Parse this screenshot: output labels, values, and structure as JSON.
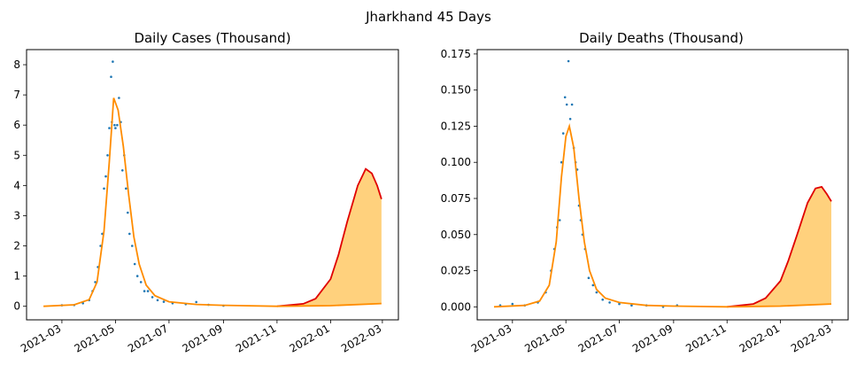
{
  "figure": {
    "suptitle": "Jharkhand 45 Days"
  },
  "colors": {
    "points": "#1f77b4",
    "fit": "#ff8c00",
    "forecast": "#e00000",
    "band": "#ffc966"
  },
  "chart_data": [
    {
      "type": "scatter",
      "title": "Daily Cases (Thousand)",
      "xlabel": "",
      "ylabel": "",
      "x_date_range": [
        "2021-02-08",
        "2022-02-28"
      ],
      "ylim": [
        -0.45,
        8.5
      ],
      "yticks": [
        0,
        1,
        2,
        3,
        4,
        5,
        6,
        7,
        8
      ],
      "xticks": [
        "2021-03",
        "2021-05",
        "2021-07",
        "2021-09",
        "2021-11",
        "2022-01",
        "2022-03"
      ],
      "grid": false,
      "legend": "none",
      "series": [
        {
          "kind": "points",
          "x": [
            "2021-03-01",
            "2021-03-15",
            "2021-03-25",
            "2021-04-01",
            "2021-04-05",
            "2021-04-08",
            "2021-04-11",
            "2021-04-14",
            "2021-04-16",
            "2021-04-18",
            "2021-04-20",
            "2021-04-22",
            "2021-04-24",
            "2021-04-26",
            "2021-04-27",
            "2021-04-28",
            "2021-04-30",
            "2021-05-01",
            "2021-05-03",
            "2021-05-05",
            "2021-05-07",
            "2021-05-09",
            "2021-05-11",
            "2021-05-13",
            "2021-05-15",
            "2021-05-17",
            "2021-05-20",
            "2021-05-23",
            "2021-05-26",
            "2021-05-30",
            "2021-06-03",
            "2021-06-07",
            "2021-06-12",
            "2021-06-18",
            "2021-06-25",
            "2021-07-05",
            "2021-07-20",
            "2021-08-01",
            "2021-08-15",
            "2021-09-01"
          ],
          "y": [
            0.03,
            0.04,
            0.1,
            0.2,
            0.5,
            0.8,
            1.3,
            2.0,
            2.4,
            3.9,
            4.3,
            5.0,
            5.9,
            7.6,
            6.1,
            8.1,
            6.0,
            5.9,
            6.0,
            6.9,
            6.1,
            4.5,
            5.0,
            3.9,
            3.1,
            2.4,
            2.0,
            1.4,
            1.0,
            0.8,
            0.5,
            0.5,
            0.3,
            0.2,
            0.15,
            0.1,
            0.07,
            0.14,
            0.05,
            0.02
          ]
        },
        {
          "kind": "fit",
          "x": [
            "2021-02-08",
            "2021-03-15",
            "2021-04-01",
            "2021-04-10",
            "2021-04-18",
            "2021-04-24",
            "2021-04-29",
            "2021-05-04",
            "2021-05-10",
            "2021-05-16",
            "2021-05-22",
            "2021-05-28",
            "2021-06-05",
            "2021-06-15",
            "2021-07-01",
            "2021-08-01",
            "2021-09-01",
            "2021-11-01",
            "2022-01-01",
            "2022-02-28"
          ],
          "y": [
            0.0,
            0.05,
            0.22,
            0.8,
            2.5,
            4.8,
            6.9,
            6.5,
            5.3,
            3.7,
            2.3,
            1.4,
            0.7,
            0.35,
            0.15,
            0.06,
            0.03,
            0.0,
            0.02,
            0.09
          ]
        },
        {
          "kind": "forecast",
          "x": [
            "2021-11-01",
            "2021-12-01",
            "2021-12-15",
            "2022-01-01",
            "2022-01-10",
            "2022-01-20",
            "2022-02-01",
            "2022-02-10",
            "2022-02-17",
            "2022-02-23",
            "2022-02-28"
          ],
          "y": [
            0.0,
            0.08,
            0.25,
            0.9,
            1.7,
            2.8,
            4.0,
            4.55,
            4.4,
            4.0,
            3.55
          ]
        }
      ]
    },
    {
      "type": "scatter",
      "title": "Daily Deaths (Thousand)",
      "xlabel": "",
      "ylabel": "",
      "x_date_range": [
        "2021-02-08",
        "2022-02-28"
      ],
      "ylim": [
        -0.009,
        0.178
      ],
      "yticks": [
        0.0,
        0.025,
        0.05,
        0.075,
        0.1,
        0.125,
        0.15,
        0.175
      ],
      "ytick_labels": [
        "0.000",
        "0.025",
        "0.050",
        "0.075",
        "0.100",
        "0.125",
        "0.150",
        "0.175"
      ],
      "xticks": [
        "2021-03",
        "2021-05",
        "2021-07",
        "2021-09",
        "2021-11",
        "2022-01",
        "2022-03"
      ],
      "grid": false,
      "legend": "none",
      "series": [
        {
          "kind": "points",
          "x": [
            "2021-02-15",
            "2021-03-01",
            "2021-03-15",
            "2021-03-30",
            "2021-04-08",
            "2021-04-14",
            "2021-04-18",
            "2021-04-21",
            "2021-04-24",
            "2021-04-26",
            "2021-04-28",
            "2021-04-30",
            "2021-05-02",
            "2021-05-04",
            "2021-05-06",
            "2021-05-08",
            "2021-05-10",
            "2021-05-12",
            "2021-05-14",
            "2021-05-16",
            "2021-05-18",
            "2021-05-20",
            "2021-05-23",
            "2021-05-27",
            "2021-06-01",
            "2021-06-05",
            "2021-06-12",
            "2021-06-20",
            "2021-07-01",
            "2021-07-15",
            "2021-08-01",
            "2021-08-20",
            "2021-09-05"
          ],
          "y": [
            0.001,
            0.002,
            0.001,
            0.003,
            0.01,
            0.025,
            0.04,
            0.055,
            0.06,
            0.1,
            0.12,
            0.145,
            0.14,
            0.17,
            0.13,
            0.14,
            0.11,
            0.1,
            0.095,
            0.07,
            0.06,
            0.05,
            0.04,
            0.02,
            0.015,
            0.01,
            0.005,
            0.003,
            0.002,
            0.001,
            0.001,
            0.0,
            0.001
          ]
        },
        {
          "kind": "fit",
          "x": [
            "2021-02-08",
            "2021-03-15",
            "2021-04-01",
            "2021-04-12",
            "2021-04-20",
            "2021-04-26",
            "2021-05-01",
            "2021-05-05",
            "2021-05-10",
            "2021-05-16",
            "2021-05-22",
            "2021-05-28",
            "2021-06-05",
            "2021-06-15",
            "2021-07-01",
            "2021-08-01",
            "2021-09-01",
            "2021-11-01",
            "2022-01-01",
            "2022-02-28"
          ],
          "y": [
            0.0,
            0.001,
            0.004,
            0.015,
            0.045,
            0.09,
            0.118,
            0.125,
            0.11,
            0.075,
            0.045,
            0.025,
            0.012,
            0.006,
            0.003,
            0.001,
            0.0005,
            0.0,
            0.0005,
            0.002
          ]
        },
        {
          "kind": "forecast",
          "x": [
            "2021-11-01",
            "2021-12-01",
            "2021-12-15",
            "2022-01-01",
            "2022-01-10",
            "2022-01-20",
            "2022-02-01",
            "2022-02-10",
            "2022-02-17",
            "2022-02-23",
            "2022-02-28"
          ],
          "y": [
            0.0,
            0.002,
            0.006,
            0.018,
            0.032,
            0.05,
            0.072,
            0.082,
            0.083,
            0.078,
            0.073
          ]
        }
      ]
    }
  ]
}
